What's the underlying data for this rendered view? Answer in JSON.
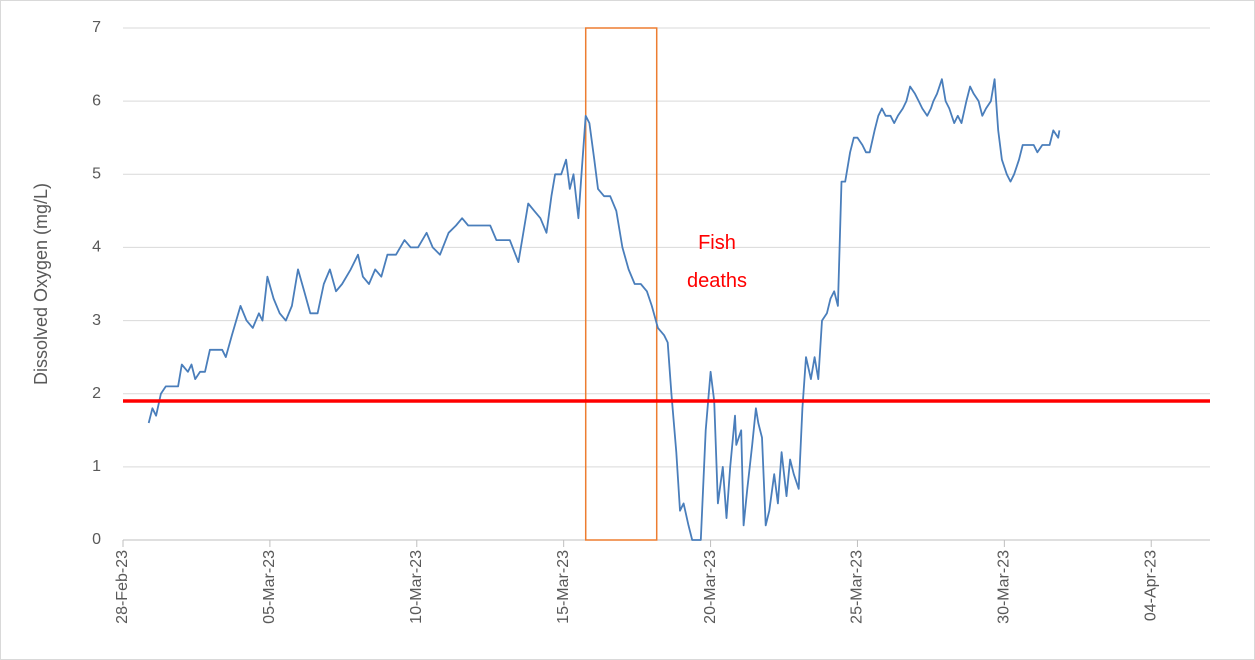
{
  "chart_data": {
    "type": "line",
    "ylabel": "Dissolved Oxygen (mg/L)",
    "annotation": "Fish deaths",
    "annotation_color": "#ff0000",
    "reference_line": {
      "value": 1.9,
      "color": "#ff0000"
    },
    "highlight": {
      "x": [
        "2023-03-15T18:00",
        "2023-03-18T04:00"
      ],
      "y": [
        0,
        7
      ],
      "color": "#ed7d31"
    },
    "xlim": [
      "2023-02-28T00:00",
      "2023-04-06T00:00"
    ],
    "xticks": [
      {
        "value": "2023-02-28T00:00",
        "label": "28-Feb-23"
      },
      {
        "value": "2023-03-05T00:00",
        "label": "05-Mar-23"
      },
      {
        "value": "2023-03-10T00:00",
        "label": "10-Mar-23"
      },
      {
        "value": "2023-03-15T00:00",
        "label": "15-Mar-23"
      },
      {
        "value": "2023-03-20T00:00",
        "label": "20-Mar-23"
      },
      {
        "value": "2023-03-25T00:00",
        "label": "25-Mar-23"
      },
      {
        "value": "2023-03-30T00:00",
        "label": "30-Mar-23"
      },
      {
        "value": "2023-04-04T00:00",
        "label": "04-Apr-23"
      }
    ],
    "ylim": [
      0,
      7
    ],
    "yticks": [
      0,
      1,
      2,
      3,
      4,
      5,
      6,
      7
    ],
    "grid": true,
    "x": [
      "2023-02-28T21:00",
      "2023-03-01T00:00",
      "2023-03-01T03:00",
      "2023-03-01T07:00",
      "2023-03-01T11:00",
      "2023-03-01T21:00",
      "2023-03-02T00:00",
      "2023-03-02T05:00",
      "2023-03-02T08:00",
      "2023-03-02T11:00",
      "2023-03-02T15:00",
      "2023-03-02T19:00",
      "2023-03-02T23:00",
      "2023-03-03T09:00",
      "2023-03-03T12:00",
      "2023-03-03T17:00",
      "2023-03-04T00:00",
      "2023-03-04T05:00",
      "2023-03-04T10:00",
      "2023-03-04T15:00",
      "2023-03-04T18:00",
      "2023-03-04T22:00",
      "2023-03-05T03:00",
      "2023-03-05T08:00",
      "2023-03-05T13:00",
      "2023-03-05T18:00",
      "2023-03-05T23:00",
      "2023-03-06T04:00",
      "2023-03-06T09:00",
      "2023-03-06T15:00",
      "2023-03-06T20:00",
      "2023-03-07T01:00",
      "2023-03-07T06:00",
      "2023-03-07T11:00",
      "2023-03-07T18:00",
      "2023-03-08T00:00",
      "2023-03-08T04:00",
      "2023-03-08T09:00",
      "2023-03-08T14:00",
      "2023-03-08T19:00",
      "2023-03-09T00:00",
      "2023-03-09T07:00",
      "2023-03-09T14:00",
      "2023-03-09T19:00",
      "2023-03-10T01:00",
      "2023-03-10T08:00",
      "2023-03-10T13:00",
      "2023-03-10T19:00",
      "2023-03-11T02:00",
      "2023-03-11T08:00",
      "2023-03-11T13:00",
      "2023-03-11T18:00",
      "2023-03-11T22:00",
      "2023-03-12T05:00",
      "2023-03-12T12:00",
      "2023-03-12T17:00",
      "2023-03-13T04:00",
      "2023-03-13T11:00",
      "2023-03-13T14:00",
      "2023-03-13T19:00",
      "2023-03-14T00:00",
      "2023-03-14T05:00",
      "2023-03-14T10:00",
      "2023-03-14T14:00",
      "2023-03-14T17:00",
      "2023-03-14T22:00",
      "2023-03-15T02:00",
      "2023-03-15T05:00",
      "2023-03-15T08:00",
      "2023-03-15T12:00",
      "2023-03-15T15:00",
      "2023-03-15T18:00",
      "2023-03-15T21:00",
      "2023-03-16T01:00",
      "2023-03-16T04:00",
      "2023-03-16T09:00",
      "2023-03-16T14:00",
      "2023-03-16T19:00",
      "2023-03-17T00:00",
      "2023-03-17T05:00",
      "2023-03-17T10:00",
      "2023-03-17T15:00",
      "2023-03-17T20:00",
      "2023-03-18T00:00",
      "2023-03-18T05:00",
      "2023-03-18T10:00",
      "2023-03-18T13:00",
      "2023-03-18T16:00",
      "2023-03-18T20:00",
      "2023-03-18T23:00",
      "2023-03-19T02:00",
      "2023-03-19T06:00",
      "2023-03-19T09:00",
      "2023-03-19T16:00",
      "2023-03-19T20:00",
      "2023-03-20T00:00",
      "2023-03-20T03:00",
      "2023-03-20T06:00",
      "2023-03-20T10:00",
      "2023-03-20T13:00",
      "2023-03-20T16:00",
      "2023-03-20T20:00",
      "2023-03-20T21:00",
      "2023-03-21T01:00",
      "2023-03-21T03:00",
      "2023-03-21T06:00",
      "2023-03-21T10:00",
      "2023-03-21T13:00",
      "2023-03-21T15:00",
      "2023-03-21T18:00",
      "2023-03-21T21:00",
      "2023-03-22T00:00",
      "2023-03-22T04:00",
      "2023-03-22T07:00",
      "2023-03-22T10:00",
      "2023-03-22T14:00",
      "2023-03-22T17:00",
      "2023-03-22T20:00",
      "2023-03-23T00:00",
      "2023-03-23T03:00",
      "2023-03-23T06:00",
      "2023-03-23T10:00",
      "2023-03-23T13:00",
      "2023-03-23T16:00",
      "2023-03-23T19:00",
      "2023-03-23T23:00",
      "2023-03-24T02:00",
      "2023-03-24T05:00",
      "2023-03-24T08:00",
      "2023-03-24T11:00",
      "2023-03-24T14:00",
      "2023-03-24T18:00",
      "2023-03-24T21:00",
      "2023-03-25T00:00",
      "2023-03-25T04:00",
      "2023-03-25T07:00",
      "2023-03-25T10:00",
      "2023-03-25T14:00",
      "2023-03-25T17:00",
      "2023-03-25T20:00",
      "2023-03-25T23:00",
      "2023-03-26T03:00",
      "2023-03-26T06:00",
      "2023-03-26T09:00",
      "2023-03-26T13:00",
      "2023-03-26T16:00",
      "2023-03-26T19:00",
      "2023-03-26T23:00",
      "2023-03-27T02:00",
      "2023-03-27T05:00",
      "2023-03-27T09:00",
      "2023-03-27T12:00",
      "2023-03-27T14:00",
      "2023-03-27T17:00",
      "2023-03-27T21:00",
      "2023-03-28T00:00",
      "2023-03-28T03:00",
      "2023-03-28T07:00",
      "2023-03-28T10:00",
      "2023-03-28T13:00",
      "2023-03-28T17:00",
      "2023-03-28T20:00",
      "2023-03-28T23:00",
      "2023-03-29T03:00",
      "2023-03-29T06:00",
      "2023-03-29T09:00",
      "2023-03-29T13:00",
      "2023-03-29T16:00",
      "2023-03-29T19:00",
      "2023-03-29T22:00",
      "2023-03-30T02:00",
      "2023-03-30T05:00",
      "2023-03-30T08:00",
      "2023-03-30T12:00",
      "2023-03-30T15:00",
      "2023-03-30T18:00",
      "2023-03-30T21:00",
      "2023-03-31T00:00",
      "2023-03-31T03:00",
      "2023-03-31T07:00",
      "2023-03-31T10:00",
      "2023-03-31T13:00",
      "2023-03-31T16:00",
      "2023-03-31T20:00",
      "2023-03-31T21:00"
    ],
    "series": [
      {
        "name": "Dissolved Oxygen",
        "color": "#4a7ebb",
        "values": [
          1.6,
          1.8,
          1.7,
          2.0,
          2.1,
          2.1,
          2.4,
          2.3,
          2.4,
          2.2,
          2.3,
          2.3,
          2.6,
          2.6,
          2.5,
          2.8,
          3.2,
          3.0,
          2.9,
          3.1,
          3.0,
          3.6,
          3.3,
          3.1,
          3.0,
          3.2,
          3.7,
          3.4,
          3.1,
          3.1,
          3.5,
          3.7,
          3.4,
          3.5,
          3.7,
          3.9,
          3.6,
          3.5,
          3.7,
          3.6,
          3.9,
          3.9,
          4.1,
          4.0,
          4.0,
          4.2,
          4.0,
          3.9,
          4.2,
          4.3,
          4.4,
          4.3,
          4.3,
          4.3,
          4.3,
          4.1,
          4.1,
          3.8,
          4.1,
          4.6,
          4.5,
          4.4,
          4.2,
          4.7,
          5.0,
          5.0,
          5.2,
          4.8,
          5.0,
          4.4,
          5.1,
          5.8,
          5.7,
          5.2,
          4.8,
          4.7,
          4.7,
          4.5,
          4.0,
          3.7,
          3.5,
          3.5,
          3.4,
          3.2,
          2.9,
          2.8,
          2.7,
          2.0,
          1.2,
          0.4,
          0.5,
          0.2,
          0.0,
          0.0,
          1.5,
          2.3,
          1.9,
          0.5,
          1.0,
          0.3,
          1.0,
          1.7,
          1.3,
          1.5,
          0.2,
          0.7,
          1.3,
          1.8,
          1.6,
          1.4,
          0.2,
          0.4,
          0.9,
          0.5,
          1.2,
          0.6,
          1.1,
          0.9,
          0.7,
          1.8,
          2.5,
          2.2,
          2.5,
          2.2,
          3.0,
          3.1,
          3.3,
          3.4,
          3.2,
          4.9,
          4.9,
          5.3,
          5.5,
          5.5,
          5.4,
          5.3,
          5.3,
          5.6,
          5.8,
          5.9,
          5.8,
          5.8,
          5.7,
          5.8,
          5.9,
          6.0,
          6.2,
          6.1,
          6.0,
          5.9,
          5.8,
          5.9,
          6.0,
          6.1,
          6.3,
          6.0,
          5.9,
          5.7,
          5.8,
          5.7,
          6.0,
          6.2,
          6.1,
          6.0,
          5.8,
          5.9,
          6.0,
          6.3,
          5.6,
          5.2,
          5.0,
          4.9,
          5.0,
          5.2,
          5.4,
          5.4,
          5.4,
          5.4,
          5.3,
          5.4,
          5.4,
          5.4,
          5.6,
          5.5,
          5.6
        ]
      }
    ]
  }
}
